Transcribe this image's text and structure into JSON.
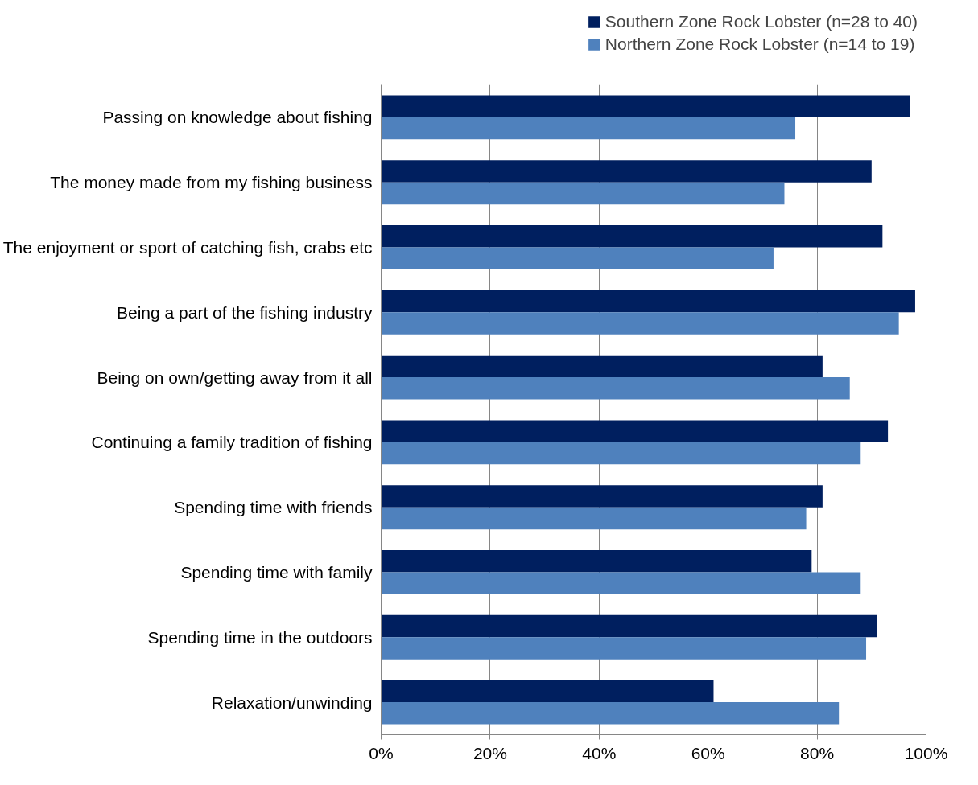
{
  "chart_data": {
    "type": "bar",
    "orientation": "horizontal",
    "categories": [
      "Passing on knowledge about fishing",
      "The money made from my fishing business",
      "The enjoyment or sport of catching fish, crabs etc",
      "Being a part of the fishing industry",
      "Being on own/getting away from it all",
      "Continuing a family tradition of fishing",
      "Spending time with friends",
      "Spending time with family",
      "Spending time in the outdoors",
      "Relaxation/unwinding"
    ],
    "series": [
      {
        "name": "Southern Zone Rock Lobster (n=28 to 40)",
        "color": "#001f5f",
        "values": [
          97,
          90,
          92,
          98,
          81,
          93,
          81,
          79,
          91,
          61
        ]
      },
      {
        "name": "Northern Zone Rock Lobster (n=14 to 19)",
        "color": "#4f81bd",
        "values": [
          76,
          74,
          72,
          95,
          86,
          88,
          78,
          88,
          89,
          84
        ]
      }
    ],
    "xlim": [
      0,
      100
    ],
    "xticks": [
      {
        "value": 0,
        "label": "0%"
      },
      {
        "value": 20,
        "label": "20%"
      },
      {
        "value": 40,
        "label": "40%"
      },
      {
        "value": 60,
        "label": "60%"
      },
      {
        "value": 80,
        "label": "80%"
      },
      {
        "value": 100,
        "label": "100%"
      }
    ],
    "grid": "x",
    "legend": "top right"
  }
}
